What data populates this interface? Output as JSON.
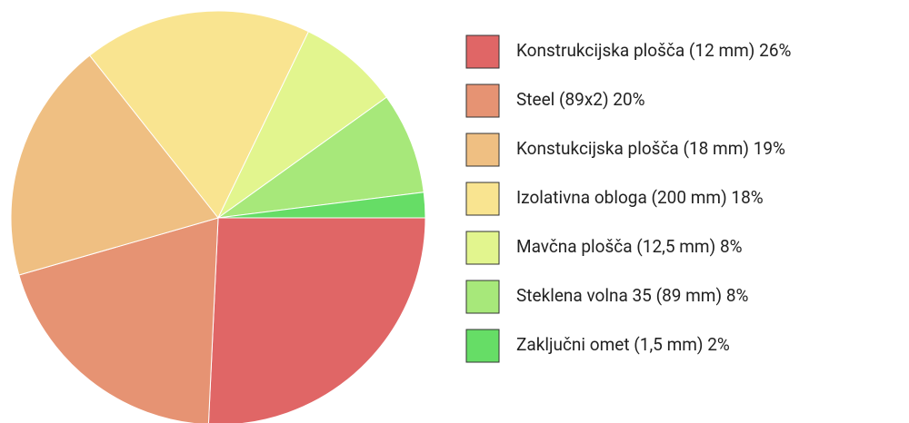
{
  "chart_data": {
    "type": "pie",
    "categories": [
      "Konstrukcijska plošča (12 mm)",
      "Steel (89x2)",
      "Konstukcijska plošča (18 mm)",
      "Izolativna obloga (200 mm)",
      "Mavčna plošča (12,5 mm)",
      "Steklena volna 35 (89 mm)",
      "Zaključni omet (1,5 mm)"
    ],
    "values": [
      26,
      20,
      19,
      18,
      8,
      8,
      2
    ],
    "value_labels": [
      "26%",
      "20%",
      "19%",
      "18%",
      "8%",
      "8%",
      "2%"
    ],
    "colors": [
      "#e06666",
      "#e69373",
      "#efbf82",
      "#f9e490",
      "#e2f58e",
      "#a7e87a",
      "#66dd66"
    ],
    "legend": "right"
  }
}
